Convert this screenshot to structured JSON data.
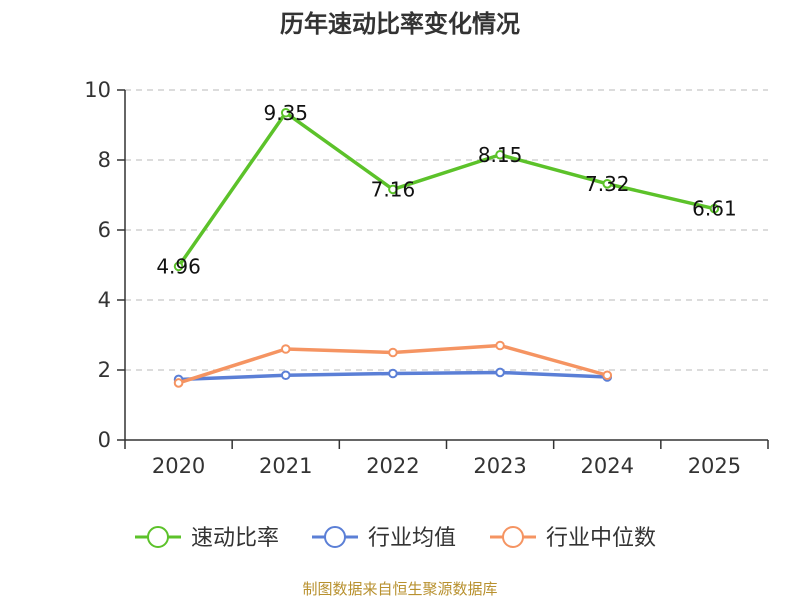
{
  "chart_data": {
    "type": "line",
    "title": "历年速动比率变化情况",
    "categories": [
      "2020",
      "2021",
      "2022",
      "2023",
      "2024",
      "2025"
    ],
    "ylim": [
      0,
      10
    ],
    "yticks": [
      0,
      2,
      4,
      6,
      8,
      10
    ],
    "grid": "horizontal-dashed",
    "legend_position": "bottom",
    "series": [
      {
        "name": "速动比率",
        "color": "#5cc22a",
        "values": [
          4.96,
          9.35,
          7.16,
          8.15,
          7.32,
          6.61
        ],
        "show_labels": true
      },
      {
        "name": "行业均值",
        "color": "#5b7fd6",
        "values": [
          1.73,
          1.85,
          1.9,
          1.93,
          1.8,
          null
        ],
        "show_labels": false
      },
      {
        "name": "行业中位数",
        "color": "#f59462",
        "values": [
          1.63,
          2.6,
          2.5,
          2.7,
          1.85,
          null
        ],
        "show_labels": false
      }
    ]
  },
  "source": "制图数据来自恒生聚源数据库"
}
